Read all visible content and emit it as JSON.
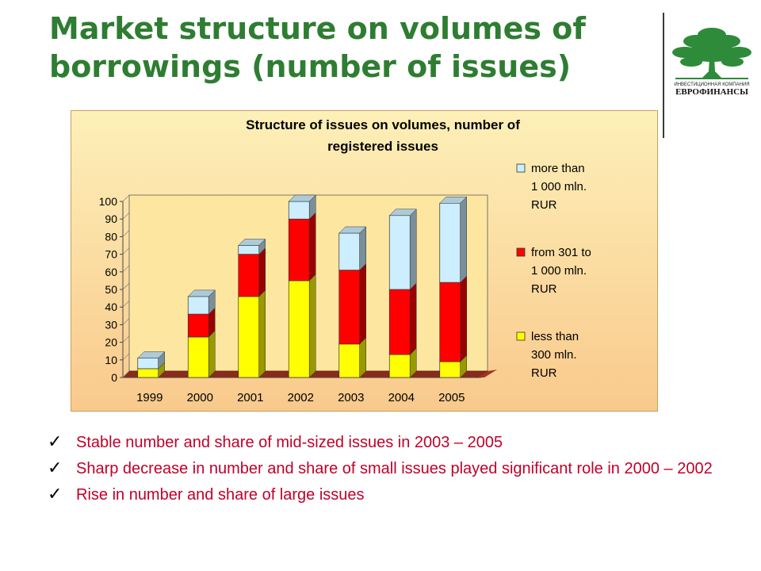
{
  "slide": {
    "title": "Market structure on volumes of borrowings (number of issues)",
    "logo": {
      "caption_line1": "ИНВЕСТИЦИОННАЯ КОМПАНИЯ",
      "caption_line2": "ЕВРОФИНАНСЫ",
      "icon": "tree-icon"
    },
    "bullets": [
      "Stable number and share of mid-sized issues in 2003 – 2005",
      "Sharp decrease in number and share of small issues played significant role in 2000 – 2002",
      "Rise in number and share of large issues"
    ]
  },
  "colors": {
    "title": "#2e7d32",
    "bullet_text": "#c0002a",
    "chart_background": "#fde9a6",
    "series_small": "#ffff00",
    "series_mid": "#ff0000",
    "series_large": "#cceeff"
  },
  "chart_data": {
    "type": "bar",
    "stacked": true,
    "three_d": true,
    "title": "Structure of issues on volumes, number of registered issues",
    "title_lines": [
      "Structure of issues on volumes, number of",
      "registered issues"
    ],
    "categories": [
      "1999",
      "2000",
      "2001",
      "2002",
      "2003",
      "2004",
      "2005"
    ],
    "series": [
      {
        "name": "less than 300 mln. RUR",
        "legend_lines": [
          "less than",
          "300 mln.",
          "RUR"
        ],
        "color": "#ffff00",
        "values": [
          5,
          23,
          46,
          55,
          19,
          13,
          9
        ]
      },
      {
        "name": "from 301 to 1 000 mln. RUR",
        "legend_lines": [
          "from 301 to",
          "1 000 mln.",
          "RUR"
        ],
        "color": "#ff0000",
        "values": [
          0,
          13,
          24,
          35,
          42,
          37,
          45
        ]
      },
      {
        "name": "more than 1 000 mln. RUR",
        "legend_lines": [
          "more than",
          "1 000 mln.",
          "RUR"
        ],
        "color": "#cceeff",
        "values": [
          6,
          10,
          5,
          10,
          21,
          42,
          45
        ]
      }
    ],
    "ylim": [
      0,
      100
    ],
    "yticks": [
      "0",
      "10",
      "20",
      "30",
      "40",
      "50",
      "60",
      "70",
      "80",
      "90",
      "100"
    ],
    "legend_position": "right",
    "grid": false
  }
}
